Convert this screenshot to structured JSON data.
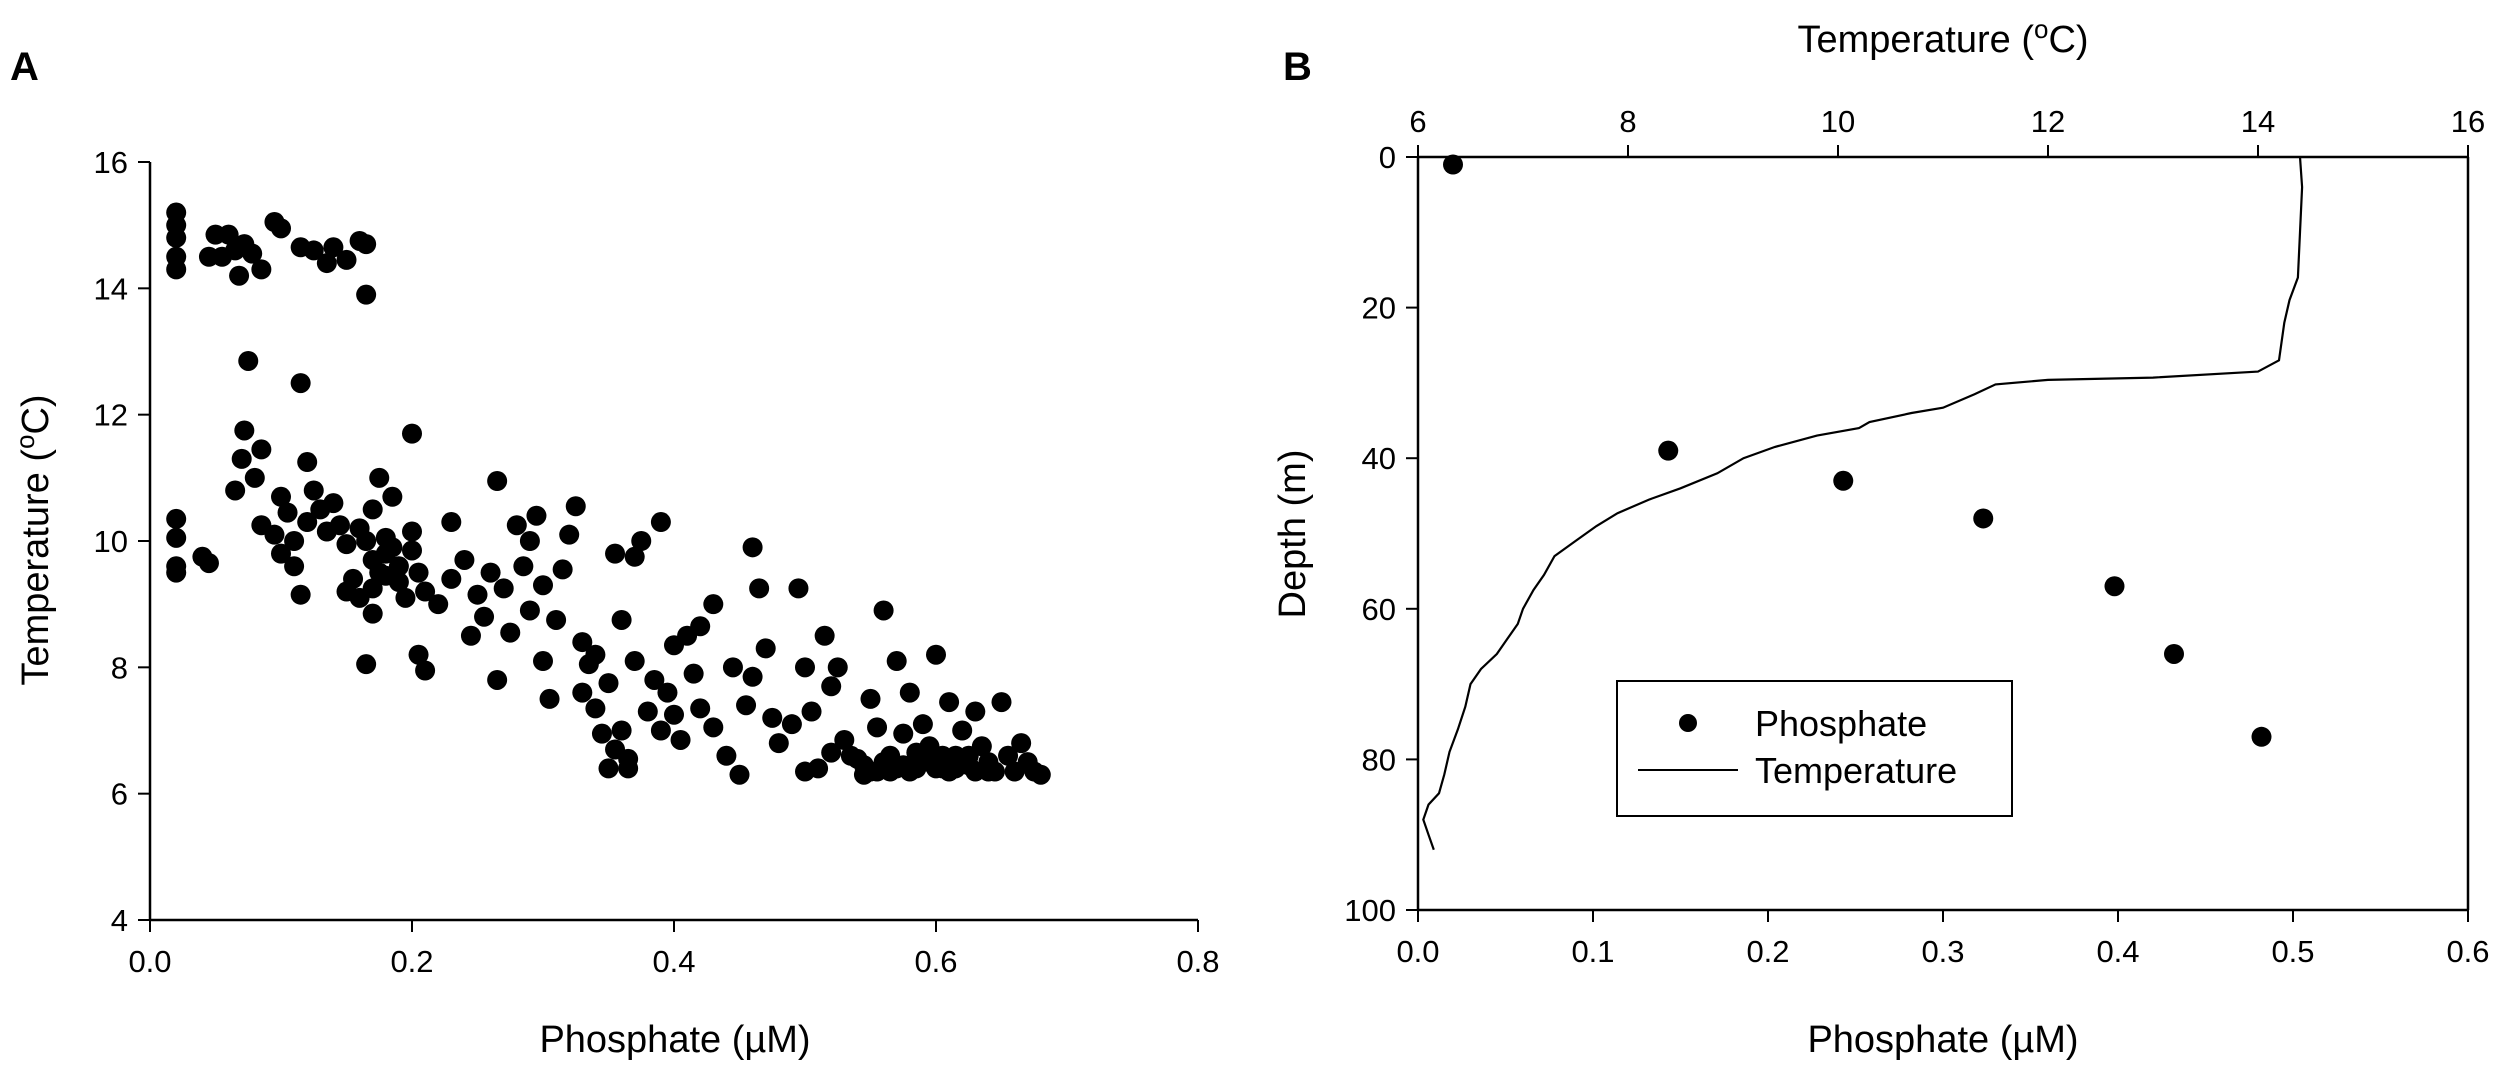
{
  "panels": {
    "a": {
      "letter": "A"
    },
    "b": {
      "letter": "B"
    }
  },
  "chart_data": [
    {
      "type": "scatter",
      "panel": "A",
      "xlabel": "Phosphate (µM)",
      "ylabel_main": "Temperature (",
      "ylabel_sup": "o",
      "ylabel_end": "C)",
      "xlim": [
        0.0,
        0.8
      ],
      "ylim": [
        4,
        16
      ],
      "xticks": [
        0.0,
        0.2,
        0.4,
        0.6,
        0.8
      ],
      "xtick_labels": [
        "0.0",
        "0.2",
        "0.4",
        "0.6",
        "0.8"
      ],
      "yticks": [
        4,
        6,
        8,
        10,
        12,
        14,
        16
      ],
      "ytick_labels": [
        "4",
        "6",
        "8",
        "10",
        "12",
        "14",
        "16"
      ],
      "points": [
        [
          0.02,
          15.2
        ],
        [
          0.02,
          15.0
        ],
        [
          0.02,
          14.8
        ],
        [
          0.02,
          14.5
        ],
        [
          0.02,
          14.3
        ],
        [
          0.045,
          14.5
        ],
        [
          0.05,
          14.85
        ],
        [
          0.055,
          14.5
        ],
        [
          0.06,
          14.85
        ],
        [
          0.065,
          14.6
        ],
        [
          0.068,
          14.2
        ],
        [
          0.072,
          14.7
        ],
        [
          0.078,
          14.55
        ],
        [
          0.085,
          14.3
        ],
        [
          0.095,
          15.05
        ],
        [
          0.1,
          14.95
        ],
        [
          0.115,
          14.65
        ],
        [
          0.125,
          14.6
        ],
        [
          0.135,
          14.4
        ],
        [
          0.14,
          14.65
        ],
        [
          0.15,
          14.45
        ],
        [
          0.16,
          14.75
        ],
        [
          0.165,
          14.7
        ],
        [
          0.165,
          13.9
        ],
        [
          0.02,
          10.35
        ],
        [
          0.02,
          10.05
        ],
        [
          0.02,
          9.6
        ],
        [
          0.02,
          9.5
        ],
        [
          0.04,
          9.75
        ],
        [
          0.045,
          9.65
        ],
        [
          0.065,
          10.8
        ],
        [
          0.07,
          11.3
        ],
        [
          0.072,
          11.75
        ],
        [
          0.075,
          12.85
        ],
        [
          0.08,
          11.0
        ],
        [
          0.085,
          11.45
        ],
        [
          0.085,
          10.25
        ],
        [
          0.095,
          10.1
        ],
        [
          0.1,
          10.7
        ],
        [
          0.1,
          9.8
        ],
        [
          0.105,
          10.45
        ],
        [
          0.11,
          10.0
        ],
        [
          0.11,
          9.6
        ],
        [
          0.115,
          12.5
        ],
        [
          0.115,
          9.15
        ],
        [
          0.12,
          11.25
        ],
        [
          0.12,
          10.3
        ],
        [
          0.125,
          10.8
        ],
        [
          0.13,
          10.5
        ],
        [
          0.135,
          10.15
        ],
        [
          0.14,
          10.6
        ],
        [
          0.145,
          10.25
        ],
        [
          0.15,
          9.95
        ],
        [
          0.15,
          9.2
        ],
        [
          0.155,
          9.4
        ],
        [
          0.16,
          9.1
        ],
        [
          0.16,
          10.2
        ],
        [
          0.165,
          10.0
        ],
        [
          0.165,
          8.05
        ],
        [
          0.17,
          10.5
        ],
        [
          0.17,
          9.7
        ],
        [
          0.17,
          9.25
        ],
        [
          0.17,
          8.85
        ],
        [
          0.175,
          11.0
        ],
        [
          0.175,
          9.5
        ],
        [
          0.18,
          10.05
        ],
        [
          0.18,
          9.8
        ],
        [
          0.18,
          9.45
        ],
        [
          0.185,
          10.7
        ],
        [
          0.185,
          9.9
        ],
        [
          0.19,
          9.6
        ],
        [
          0.19,
          9.35
        ],
        [
          0.195,
          9.1
        ],
        [
          0.2,
          11.7
        ],
        [
          0.2,
          10.15
        ],
        [
          0.2,
          9.85
        ],
        [
          0.205,
          9.5
        ],
        [
          0.205,
          8.2
        ],
        [
          0.21,
          9.2
        ],
        [
          0.21,
          7.95
        ],
        [
          0.22,
          9.0
        ],
        [
          0.23,
          10.3
        ],
        [
          0.23,
          9.4
        ],
        [
          0.24,
          9.7
        ],
        [
          0.245,
          8.5
        ],
        [
          0.25,
          9.15
        ],
        [
          0.255,
          8.8
        ],
        [
          0.26,
          9.5
        ],
        [
          0.265,
          10.95
        ],
        [
          0.265,
          7.8
        ],
        [
          0.27,
          9.25
        ],
        [
          0.275,
          8.55
        ],
        [
          0.28,
          10.25
        ],
        [
          0.285,
          9.6
        ],
        [
          0.29,
          8.9
        ],
        [
          0.29,
          10.0
        ],
        [
          0.295,
          10.4
        ],
        [
          0.3,
          9.3
        ],
        [
          0.3,
          8.1
        ],
        [
          0.305,
          7.5
        ],
        [
          0.31,
          8.75
        ],
        [
          0.315,
          9.55
        ],
        [
          0.32,
          10.1
        ],
        [
          0.325,
          10.55
        ],
        [
          0.33,
          8.4
        ],
        [
          0.33,
          7.6
        ],
        [
          0.335,
          8.05
        ],
        [
          0.34,
          8.2
        ],
        [
          0.34,
          7.35
        ],
        [
          0.345,
          6.95
        ],
        [
          0.35,
          7.75
        ],
        [
          0.35,
          6.4
        ],
        [
          0.355,
          6.7
        ],
        [
          0.355,
          9.8
        ],
        [
          0.36,
          8.75
        ],
        [
          0.36,
          7.0
        ],
        [
          0.365,
          6.55
        ],
        [
          0.365,
          6.4
        ],
        [
          0.37,
          9.75
        ],
        [
          0.37,
          8.1
        ],
        [
          0.375,
          10.0
        ],
        [
          0.38,
          7.3
        ],
        [
          0.385,
          7.8
        ],
        [
          0.39,
          10.3
        ],
        [
          0.39,
          7.0
        ],
        [
          0.395,
          7.6
        ],
        [
          0.4,
          8.35
        ],
        [
          0.4,
          7.25
        ],
        [
          0.405,
          6.85
        ],
        [
          0.41,
          8.5
        ],
        [
          0.415,
          7.9
        ],
        [
          0.42,
          8.65
        ],
        [
          0.42,
          7.35
        ],
        [
          0.43,
          9.0
        ],
        [
          0.43,
          7.05
        ],
        [
          0.44,
          6.6
        ],
        [
          0.445,
          8.0
        ],
        [
          0.45,
          6.3
        ],
        [
          0.455,
          7.4
        ],
        [
          0.46,
          9.9
        ],
        [
          0.46,
          7.85
        ],
        [
          0.465,
          9.25
        ],
        [
          0.47,
          8.3
        ],
        [
          0.475,
          7.2
        ],
        [
          0.48,
          6.8
        ],
        [
          0.49,
          7.1
        ],
        [
          0.495,
          9.25
        ],
        [
          0.5,
          8.0
        ],
        [
          0.505,
          7.3
        ],
        [
          0.51,
          6.4
        ],
        [
          0.515,
          8.5
        ],
        [
          0.52,
          7.7
        ],
        [
          0.525,
          8.0
        ],
        [
          0.53,
          6.85
        ],
        [
          0.54,
          6.55
        ],
        [
          0.545,
          6.3
        ],
        [
          0.55,
          7.5
        ],
        [
          0.555,
          7.05
        ],
        [
          0.56,
          8.9
        ],
        [
          0.565,
          6.35
        ],
        [
          0.57,
          8.1
        ],
        [
          0.575,
          6.95
        ],
        [
          0.58,
          7.6
        ],
        [
          0.585,
          6.65
        ],
        [
          0.59,
          7.1
        ],
        [
          0.595,
          6.75
        ],
        [
          0.6,
          8.2
        ],
        [
          0.605,
          6.4
        ],
        [
          0.61,
          7.45
        ],
        [
          0.615,
          6.6
        ],
        [
          0.62,
          7.0
        ],
        [
          0.625,
          6.45
        ],
        [
          0.63,
          7.3
        ],
        [
          0.635,
          6.75
        ],
        [
          0.64,
          6.5
        ],
        [
          0.645,
          6.35
        ],
        [
          0.65,
          7.45
        ],
        [
          0.655,
          6.6
        ],
        [
          0.66,
          6.35
        ],
        [
          0.665,
          6.8
        ],
        [
          0.67,
          6.5
        ],
        [
          0.675,
          6.35
        ],
        [
          0.55,
          6.35
        ],
        [
          0.56,
          6.5
        ],
        [
          0.57,
          6.4
        ],
        [
          0.58,
          6.35
        ],
        [
          0.59,
          6.55
        ],
        [
          0.6,
          6.4
        ],
        [
          0.61,
          6.35
        ],
        [
          0.62,
          6.5
        ],
        [
          0.63,
          6.35
        ],
        [
          0.64,
          6.35
        ],
        [
          0.68,
          6.3
        ],
        [
          0.5,
          6.35
        ],
        [
          0.52,
          6.65
        ],
        [
          0.535,
          6.6
        ],
        [
          0.545,
          6.45
        ],
        [
          0.555,
          6.35
        ],
        [
          0.565,
          6.6
        ],
        [
          0.575,
          6.45
        ],
        [
          0.585,
          6.4
        ],
        [
          0.595,
          6.5
        ],
        [
          0.605,
          6.6
        ],
        [
          0.615,
          6.4
        ],
        [
          0.625,
          6.6
        ]
      ]
    },
    {
      "type": "scatter+line",
      "panel": "B",
      "xlabel_bottom": "Phosphate (µM)",
      "xlabel_top_main": "Temperature (",
      "xlabel_top_sup": "o",
      "xlabel_top_end": "C)",
      "ylabel": "Depth (m)",
      "ylim": [
        0,
        100
      ],
      "y_inverted": true,
      "xlim_bottom": [
        0.0,
        0.6
      ],
      "xlim_top": [
        6,
        16
      ],
      "xticks_bottom": [
        0.0,
        0.1,
        0.2,
        0.3,
        0.4,
        0.5,
        0.6
      ],
      "xtick_labels_bottom": [
        "0.0",
        "0.1",
        "0.2",
        "0.3",
        "0.4",
        "0.5",
        "0.6"
      ],
      "xticks_top": [
        6,
        8,
        10,
        12,
        14,
        16
      ],
      "xtick_labels_top": [
        "6",
        "8",
        "10",
        "12",
        "14",
        "16"
      ],
      "yticks": [
        0,
        20,
        40,
        60,
        80,
        100
      ],
      "ytick_labels": [
        "0",
        "20",
        "40",
        "60",
        "80",
        "100"
      ],
      "legend_position": "lower-center",
      "series": [
        {
          "name": "Phosphate",
          "marker": "circle",
          "axis": "bottom",
          "points": [
            [
              0.02,
              1
            ],
            [
              0.143,
              39
            ],
            [
              0.243,
              43
            ],
            [
              0.323,
              48
            ],
            [
              0.398,
              57
            ],
            [
              0.432,
              66
            ],
            [
              0.482,
              77
            ]
          ]
        },
        {
          "name": "Temperature",
          "marker": "line",
          "axis": "top",
          "points": [
            [
              14.4,
              0
            ],
            [
              14.42,
              4
            ],
            [
              14.4,
              10
            ],
            [
              14.38,
              16
            ],
            [
              14.3,
              19
            ],
            [
              14.25,
              22
            ],
            [
              14.2,
              27
            ],
            [
              14.0,
              28.5
            ],
            [
              13.0,
              29.3
            ],
            [
              12.0,
              29.6
            ],
            [
              11.5,
              30.2
            ],
            [
              11.3,
              31.5
            ],
            [
              11.0,
              33.3
            ],
            [
              10.7,
              34
            ],
            [
              10.3,
              35.2
            ],
            [
              10.2,
              36
            ],
            [
              9.8,
              37
            ],
            [
              9.4,
              38.5
            ],
            [
              9.1,
              40
            ],
            [
              8.85,
              42
            ],
            [
              8.5,
              44
            ],
            [
              8.2,
              45.5
            ],
            [
              7.9,
              47.3
            ],
            [
              7.7,
              49
            ],
            [
              7.5,
              51
            ],
            [
              7.3,
              53
            ],
            [
              7.2,
              55.5
            ],
            [
              7.1,
              57.5
            ],
            [
              7.0,
              60
            ],
            [
              6.95,
              62
            ],
            [
              6.85,
              64
            ],
            [
              6.75,
              66
            ],
            [
              6.6,
              68
            ],
            [
              6.5,
              70
            ],
            [
              6.45,
              73
            ],
            [
              6.38,
              76
            ],
            [
              6.3,
              79
            ],
            [
              6.25,
              82
            ],
            [
              6.2,
              84.5
            ],
            [
              6.1,
              86
            ],
            [
              6.05,
              88
            ],
            [
              6.1,
              90
            ],
            [
              6.15,
              92
            ]
          ]
        }
      ]
    }
  ]
}
